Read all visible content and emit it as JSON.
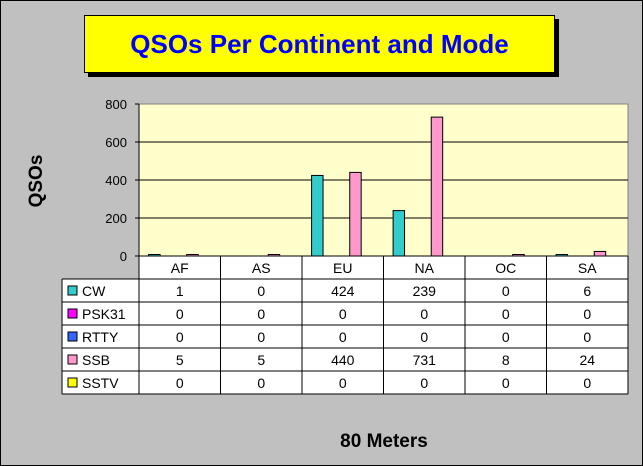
{
  "title": "QSOs Per Continent and Mode",
  "ylabel": "QSOs",
  "xlabel": "80 Meters",
  "colors": {
    "plot_bg": "#ffffcc",
    "frame_bg": "#c0c0c0",
    "title_bg": "#ffff00",
    "title_text": "#0000ff"
  },
  "chart_data": {
    "type": "bar",
    "title": "QSOs Per Continent and Mode",
    "xlabel": "80 Meters",
    "ylabel": "QSOs",
    "ylim": [
      0,
      800
    ],
    "yticks": [
      "0",
      "200",
      "400",
      "600",
      "800"
    ],
    "grid": true,
    "legend": "data-table",
    "categories": [
      "AF",
      "AS",
      "EU",
      "NA",
      "OC",
      "SA"
    ],
    "series": [
      {
        "name": "CW",
        "color": "#33cccc",
        "values": [
          1,
          0,
          424,
          239,
          0,
          6
        ]
      },
      {
        "name": "PSK31",
        "color": "#ff00ff",
        "values": [
          0,
          0,
          0,
          0,
          0,
          0
        ]
      },
      {
        "name": "RTTY",
        "color": "#3366ff",
        "values": [
          0,
          0,
          0,
          0,
          0,
          0
        ]
      },
      {
        "name": "SSB",
        "color": "#ff99cc",
        "values": [
          5,
          5,
          440,
          731,
          8,
          24
        ]
      },
      {
        "name": "SSTV",
        "color": "#ffff00",
        "values": [
          0,
          0,
          0,
          0,
          0,
          0
        ]
      }
    ]
  }
}
